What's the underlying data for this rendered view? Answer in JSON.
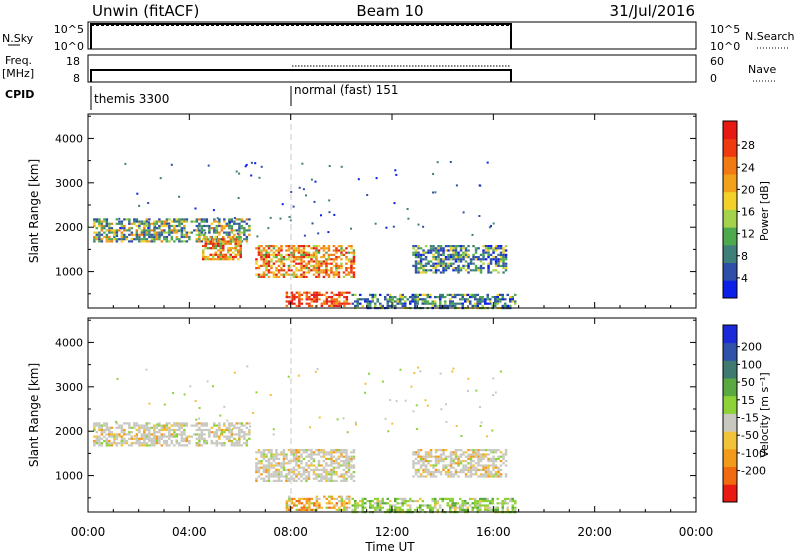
{
  "header": {
    "radar": "Unwin (fitACF)",
    "beam": "Beam 10",
    "date": "31/Jul/2016"
  },
  "side_panels": {
    "nsky_label": "N.Sky",
    "nsky_ticks": [
      "10^5",
      "10^0"
    ],
    "nsearch_label": "N.Search",
    "nsearch_ticks": [
      "10^5",
      "10^0"
    ],
    "freq_label": "Freq.",
    "freq_unit": "[MHz]",
    "freq_ticks": [
      "18",
      "8"
    ],
    "nave_label": "Nave",
    "nave_ticks": [
      "60",
      "0"
    ],
    "cpid_label": "CPID",
    "cpid_modes": [
      "themis 3300",
      "normal (fast) 151"
    ]
  },
  "chart_data": [
    {
      "type": "heatmap",
      "name": "power",
      "ylabel": "Slant Range [km]",
      "yticks": [
        "4000",
        "3000",
        "2000",
        "1000"
      ],
      "ytick_values": [
        4000,
        3000,
        2000,
        1000
      ],
      "ylim": [
        180,
        4550
      ],
      "xlim_hours": [
        0,
        24
      ],
      "colorbar": {
        "label": "Power [dB]",
        "ticks": [
          "28",
          "24",
          "20",
          "16",
          "12",
          "8",
          "4"
        ],
        "colors": [
          "#0a1fe8",
          "#2f4ea8",
          "#3f7f7a",
          "#4ea84e",
          "#a4d24a",
          "#f2d22a",
          "#f2a21a",
          "#f27a12",
          "#ee3a0e",
          "#e61a12"
        ]
      },
      "regions": [
        {
          "t0": 0.2,
          "t1": 6.4,
          "r0": 1700,
          "r1": 2200,
          "level": "mixed"
        },
        {
          "t0": 4.5,
          "t1": 6.0,
          "r0": 1300,
          "r1": 1800,
          "level": "high"
        },
        {
          "t0": 6.6,
          "t1": 10.5,
          "r0": 900,
          "r1": 1600,
          "level": "high"
        },
        {
          "t0": 7.8,
          "t1": 10.3,
          "r0": 250,
          "r1": 550,
          "level": "max"
        },
        {
          "t0": 10.4,
          "t1": 16.9,
          "r0": 200,
          "r1": 500,
          "level": "low"
        },
        {
          "t0": 12.8,
          "t1": 16.5,
          "r0": 1000,
          "r1": 1600,
          "level": "low"
        }
      ]
    },
    {
      "type": "heatmap",
      "name": "velocity",
      "ylabel": "Slant Range [km]",
      "yticks": [
        "4000",
        "3000",
        "2000",
        "1000"
      ],
      "ytick_values": [
        4000,
        3000,
        2000,
        1000
      ],
      "ylim": [
        180,
        4550
      ],
      "xlim_hours": [
        0,
        24
      ],
      "colorbar": {
        "label": "Velocity [m s⁻¹]",
        "ticks": [
          "200",
          "100",
          "50",
          "15",
          "-15",
          "-50",
          "-100",
          "-200"
        ],
        "colors": [
          "#1a2ad8",
          "#2f52a8",
          "#3f7a70",
          "#5aa840",
          "#8ed23a",
          "#c8c8c0",
          "#f2c23a",
          "#f29a1a",
          "#f26a10",
          "#e81a12"
        ]
      },
      "regions": [
        {
          "t0": 0.2,
          "t1": 6.4,
          "r0": 1700,
          "r1": 2200,
          "level": "grey"
        },
        {
          "t0": 6.6,
          "t1": 10.5,
          "r0": 900,
          "r1": 1600,
          "level": "grey"
        },
        {
          "t0": 7.8,
          "t1": 10.3,
          "r0": 250,
          "r1": 550,
          "level": "orange"
        },
        {
          "t0": 10.4,
          "t1": 16.9,
          "r0": 200,
          "r1": 500,
          "level": "green"
        },
        {
          "t0": 12.8,
          "t1": 16.5,
          "r0": 1000,
          "r1": 1600,
          "level": "grey"
        }
      ]
    }
  ],
  "x_axis": {
    "label": "Time UT",
    "ticks": [
      "00:00",
      "04:00",
      "08:00",
      "12:00",
      "16:00",
      "20:00",
      "00:00"
    ],
    "tick_hours": [
      0,
      4,
      8,
      12,
      16,
      20,
      24
    ]
  }
}
